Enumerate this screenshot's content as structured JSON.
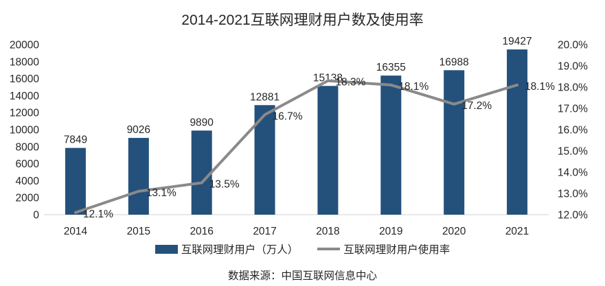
{
  "title": "2014-2021互联网理财用户数及使用率",
  "source_note": "数据来源：中国互联网信息中心",
  "colors": {
    "bar": "#24517B",
    "line": "#8A8A8A",
    "axis_line": "#D9D9D9",
    "text": "#262626"
  },
  "chart_data": {
    "type": "combo",
    "categories": [
      "2014",
      "2015",
      "2016",
      "2017",
      "2018",
      "2019",
      "2020",
      "2021"
    ],
    "series": [
      {
        "name": "互联网理财用户（万人）",
        "type": "bar",
        "axis": "left",
        "values": [
          7849,
          9026,
          9890,
          12881,
          15138,
          16355,
          16988,
          19427
        ],
        "labels": [
          "7849",
          "9026",
          "9890",
          "12881",
          "15138",
          "16355",
          "16988",
          "19427"
        ]
      },
      {
        "name": "互联网理财用户使用率",
        "type": "line",
        "axis": "right",
        "values": [
          12.1,
          13.1,
          13.5,
          16.7,
          18.3,
          18.1,
          17.2,
          18.1
        ],
        "labels": [
          "12.1%",
          "13.1%",
          "13.5%",
          "16.7%",
          "18.3%",
          "18.1%",
          "17.2%",
          "18.1%"
        ]
      }
    ],
    "left_axis": {
      "min": 0,
      "max": 20000,
      "step": 2000,
      "ticks": [
        "0",
        "2000",
        "4000",
        "6000",
        "8000",
        "10000",
        "12000",
        "14000",
        "16000",
        "18000",
        "20000"
      ]
    },
    "right_axis": {
      "min": 12,
      "max": 20,
      "step": 1,
      "ticks": [
        "12.0%",
        "13.0%",
        "14.0%",
        "15.0%",
        "16.0%",
        "17.0%",
        "18.0%",
        "19.0%",
        "20.0%"
      ]
    },
    "grid": false,
    "legend_position": "bottom"
  }
}
